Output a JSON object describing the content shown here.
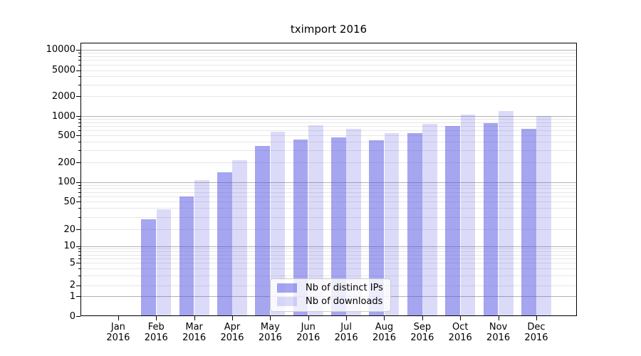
{
  "chart_data": {
    "type": "bar",
    "title": "tximport 2016",
    "x": {
      "categories": [
        "Jan",
        "Feb",
        "Mar",
        "Apr",
        "May",
        "Jun",
        "Jul",
        "Aug",
        "Sep",
        "Oct",
        "Nov",
        "Dec"
      ],
      "year": "2016"
    },
    "y": {
      "scale": "symlog",
      "ticks": [
        0,
        1,
        2,
        5,
        10,
        20,
        50,
        100,
        200,
        500,
        1000,
        2000,
        5000,
        10000
      ],
      "ylim": [
        0,
        10000
      ],
      "grid": "major and log-minor horizontal gridlines"
    },
    "series": [
      {
        "name": "Nb of distinct IPs",
        "color": "rgba(75,75,225,0.5)",
        "values": [
          0,
          28,
          60,
          140,
          350,
          435,
          465,
          425,
          540,
          690,
          780,
          630
        ]
      },
      {
        "name": "Nb of downloads",
        "color": "rgba(75,75,225,0.2)",
        "values": [
          0,
          39,
          107,
          215,
          570,
          715,
          635,
          545,
          750,
          1060,
          1200,
          1010
        ]
      }
    ],
    "legend": {
      "position": "lower center",
      "labels": [
        "Nb of distinct IPs",
        "Nb of downloads"
      ]
    }
  }
}
